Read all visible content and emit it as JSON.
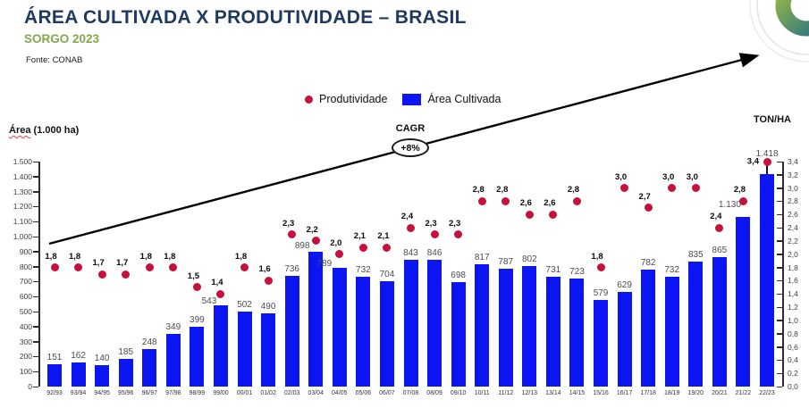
{
  "header": {
    "title": "ÁREA CULTIVADA X PRODUTIVIDADE – BRASIL",
    "subtitle": "SORGO 2023",
    "source": "Fonte: CONAB"
  },
  "legend": {
    "productivity_label": "Produtividade",
    "area_label": "Área Cultivada"
  },
  "annotation": {
    "cagr_title": "CAGR",
    "cagr_value": "+8%"
  },
  "axes": {
    "left_title_main": "Área",
    "left_title_rest": "(1.000 ha)",
    "right_title": "TON/HA",
    "left_ticks": [
      "1.500",
      "1.400",
      "1.300",
      "1.200",
      "1.100",
      "1.000",
      "900",
      "800",
      "700",
      "600",
      "500",
      "400",
      "300",
      "200",
      "100",
      "0"
    ],
    "right_ticks": [
      "3,4",
      "3,2",
      "3,0",
      "2,8",
      "2,6",
      "2,4",
      "2,2",
      "2,0",
      "1,8",
      "1,6",
      "1,4",
      "1,2",
      "1,0",
      "0,8",
      "0,6",
      "0,4",
      "0,2",
      "0,0"
    ]
  },
  "colors": {
    "bar": "#0B16F2",
    "dot": "#C5113C",
    "title": "#1E3A5F",
    "subtitle": "#82A94C",
    "arrow": "#000000",
    "ring_green": "#9CBB3F",
    "ring_blue": "#256E8D"
  },
  "chart_data": {
    "type": "combo-bar-scatter",
    "title": "ÁREA CULTIVADA X PRODUTIVIDADE – BRASIL",
    "subtitle": "SORGO 2023",
    "categories": [
      "92/93",
      "93/94",
      "94/95",
      "95/96",
      "96/97",
      "97/98",
      "98/99",
      "99/00",
      "00/01",
      "01/02",
      "02/03",
      "03/04",
      "04/05",
      "05/06",
      "06/07",
      "07/08",
      "08/09",
      "09/10",
      "10/11",
      "11/12",
      "12/13",
      "13/14",
      "14/15",
      "15/16",
      "16/17",
      "17/18",
      "18/19",
      "19/20",
      "20/21",
      "21/22",
      "22/23"
    ],
    "series": [
      {
        "name": "Área Cultivada",
        "type": "bar",
        "axis": "left",
        "values": [
          151,
          162,
          140,
          185,
          248,
          349,
          399,
          543,
          502,
          490,
          736,
          898,
          789,
          732,
          704,
          843,
          846,
          698,
          817,
          787,
          802,
          731,
          723,
          579,
          629,
          782,
          732,
          835,
          865,
          1130,
          1418
        ],
        "labels": [
          "151",
          "162",
          "140",
          "185",
          "248",
          "349",
          "399",
          "543",
          "502",
          "490",
          "736",
          "898",
          "789",
          "732",
          "704",
          "843",
          "846",
          "698",
          "817",
          "787",
          "802",
          "731",
          "723",
          "579",
          "629",
          "782",
          "732",
          "835",
          "865",
          "1.130",
          "1.418"
        ]
      },
      {
        "name": "Produtividade",
        "type": "scatter",
        "axis": "right",
        "values": [
          1.8,
          1.8,
          1.7,
          1.7,
          1.8,
          1.8,
          1.5,
          1.4,
          1.8,
          1.6,
          2.3,
          2.2,
          2.0,
          2.1,
          2.1,
          2.4,
          2.3,
          2.3,
          2.8,
          2.8,
          2.6,
          2.6,
          2.8,
          1.8,
          3.0,
          2.7,
          3.0,
          3.0,
          2.4,
          2.8,
          3.4
        ],
        "labels": [
          "1,8",
          "1,8",
          "1,7",
          "1,7",
          "1,8",
          "1,8",
          "1,5",
          "1,4",
          "1,8",
          "1,6",
          "2,3",
          "2,2",
          "2,0",
          "2,1",
          "2,1",
          "2,4",
          "2,3",
          "2,3",
          "2,8",
          "2,8",
          "2,6",
          "2,6",
          "2,8",
          "1,8",
          "3,0",
          "2,7",
          "3,0",
          "3,0",
          "2,4",
          "2,8",
          "3,4"
        ]
      }
    ],
    "left_axis": {
      "label": "Área (1.000 ha)",
      "min": 0,
      "max": 1500,
      "step": 100
    },
    "right_axis": {
      "label": "TON/HA",
      "min": 0,
      "max": 3.4,
      "step": 0.2
    },
    "legend_position": "top-center",
    "grid": false,
    "annotations": [
      {
        "type": "trend-arrow",
        "text": "CAGR +8%"
      }
    ]
  }
}
